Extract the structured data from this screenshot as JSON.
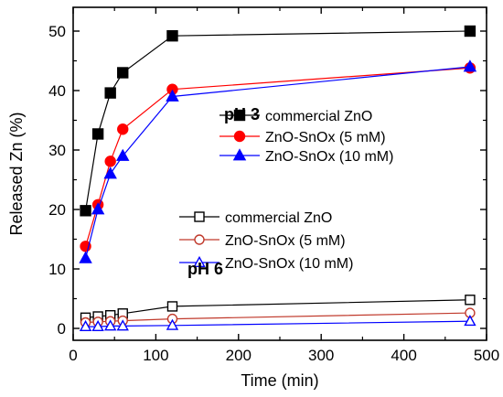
{
  "chart_data": {
    "type": "line",
    "xlabel": "Time (min)",
    "ylabel": "Released Zn (%)",
    "xlim": [
      0,
      500
    ],
    "ylim": [
      -2,
      54
    ],
    "xticks": [
      0,
      100,
      200,
      300,
      400,
      500
    ],
    "yticks": [
      0,
      10,
      20,
      30,
      40,
      50
    ],
    "grid": false,
    "legends": [
      {
        "placement": "upper-right",
        "entries": [
          0,
          1,
          2
        ],
        "annotation": "pH 3"
      },
      {
        "placement": "middle-right",
        "entries": [
          3,
          4,
          5
        ],
        "annotation": "pH 6"
      }
    ],
    "series": [
      {
        "name": "commercial ZnO",
        "group": "pH 3",
        "color": "#000000",
        "marker": "square",
        "filled": true,
        "x": [
          15,
          30,
          45,
          60,
          120,
          480
        ],
        "y": [
          19.8,
          32.7,
          39.6,
          43.0,
          49.2,
          50.0
        ]
      },
      {
        "name": "ZnO-SnOx (5 mM)",
        "group": "pH 3",
        "color": "#ff0000",
        "marker": "circle",
        "filled": true,
        "x": [
          15,
          30,
          45,
          60,
          120,
          480
        ],
        "y": [
          13.8,
          20.8,
          28.1,
          33.5,
          40.2,
          43.8
        ]
      },
      {
        "name": "ZnO-SnOx (10 mM)",
        "group": "pH 3",
        "color": "#0000ff",
        "marker": "triangle",
        "filled": true,
        "x": [
          15,
          30,
          45,
          60,
          120,
          480
        ],
        "y": [
          11.8,
          20.0,
          26.0,
          29.0,
          39.0,
          44.0
        ]
      },
      {
        "name": "commercial ZnO",
        "group": "pH 6",
        "color": "#000000",
        "marker": "square",
        "filled": false,
        "x": [
          15,
          30,
          45,
          60,
          120,
          480
        ],
        "y": [
          1.8,
          2.0,
          2.2,
          2.5,
          3.7,
          4.8
        ]
      },
      {
        "name": "ZnO-SnOx (5 mM)",
        "group": "pH 6",
        "color": "#c0392b",
        "marker": "circle",
        "filled": false,
        "x": [
          15,
          30,
          45,
          60,
          120,
          480
        ],
        "y": [
          1.0,
          1.1,
          1.2,
          1.3,
          1.6,
          2.6
        ]
      },
      {
        "name": "ZnO-SnOx (10 mM)",
        "group": "pH 6",
        "color": "#0000ff",
        "marker": "triangle",
        "filled": false,
        "x": [
          15,
          30,
          45,
          60,
          120,
          480
        ],
        "y": [
          0.3,
          0.3,
          0.4,
          0.4,
          0.5,
          1.2
        ]
      }
    ]
  }
}
